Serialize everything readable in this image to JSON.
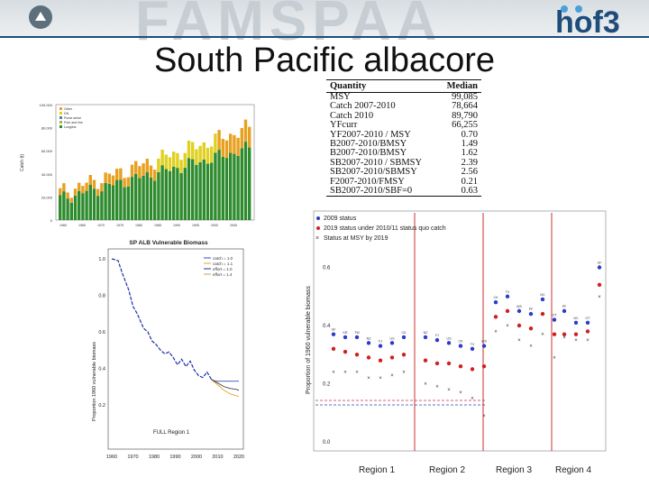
{
  "slide": {
    "watermark": "FAMSPAA",
    "title": "South Pacific albacore",
    "logo_text": "hof3"
  },
  "catch_chart": {
    "legend": [
      "Other",
      "DN",
      "Purse seine",
      "Pole and line",
      "Longline"
    ],
    "y_ticks": [
      "0",
      "20,000",
      "40,000",
      "60,000",
      "80,000",
      "100,000"
    ],
    "ylabel": "Catch (t)",
    "x_ticks": [
      "1960",
      "1965",
      "1970",
      "1975",
      "1980",
      "1985",
      "1990",
      "1995",
      "2000",
      "2005"
    ],
    "colors": {
      "longline": "#2e8b2e",
      "pole_and_line": "#a0b840",
      "purse_seine": "#4e7fb0",
      "dn": "#e0d020",
      "other": "#e8a020"
    }
  },
  "biomass_chart": {
    "title": "SP ALB Vulnerable Biomass",
    "legend": [
      "catch = 1.0",
      "catch = 1.1",
      "effort = 1.0",
      "effort = 1.4"
    ],
    "ylabel": "Proportion 1960 vulnerable biomass",
    "y_ticks": [
      "1.0",
      "0.8",
      "0.6",
      "0.4",
      "0.2"
    ],
    "x_ticks": [
      "1960",
      "1970",
      "1980",
      "1990",
      "2000",
      "2010",
      "2020"
    ],
    "annotation": "FULL Region 1"
  },
  "quantity_table": {
    "headers": [
      "Quantity",
      "Median"
    ],
    "rows": [
      {
        "q": "MSY",
        "v": "99,085"
      },
      {
        "q": "Catch 2007-2010",
        "v": "78,664"
      },
      {
        "q": "Catch 2010",
        "v": "89,790"
      },
      {
        "q": "YFcurr",
        "v": "66,255"
      },
      {
        "q": "YF2007-2010 / MSY",
        "v": "0.70"
      },
      {
        "q": "B2007-2010/BMSY",
        "v": "1.49"
      },
      {
        "q": "B2007-2010/BMSY",
        "v": "1.62"
      },
      {
        "q": "SB2007-2010 / SBMSY",
        "v": "2.39"
      },
      {
        "q": "SB2007-2010/SBMSY",
        "v": "2.56"
      },
      {
        "q": "F2007-2010/FMSY",
        "v": "0.21"
      },
      {
        "q": "SB2007-2010/SBF=0",
        "v": "0.63"
      }
    ]
  },
  "status_chart": {
    "legend": [
      "2009 status",
      "2019 status under 2010/11 status quo catch",
      "Status at MSY by 2019"
    ],
    "ylabel": "Proportion of 1960 vulnerable biomass",
    "y_ticks": [
      "0.0",
      "0.2",
      "0.4",
      "0.6"
    ],
    "regions": [
      "Region 1",
      "Region 2",
      "Region 3",
      "Region 4"
    ],
    "marker_labels": [
      "UF",
      "KR",
      "TW",
      "NZ",
      "FJ",
      "US",
      "CK",
      "TV",
      "WS",
      "PF",
      "NC",
      "OT"
    ],
    "colors": {
      "status_2009": "#2a3cc8",
      "status_2019": "#d02020",
      "msy": "#333333",
      "divider": "#c83232"
    }
  }
}
